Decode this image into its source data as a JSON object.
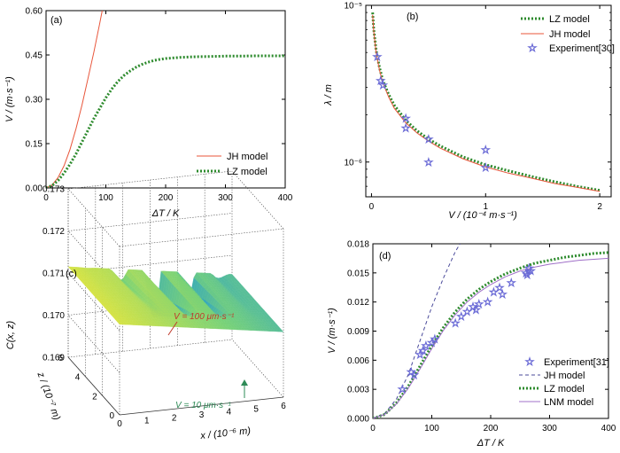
{
  "colors": {
    "jh": "#e8553a",
    "lz": "#2e8b2e",
    "star": "#6b6bd6",
    "lnm": "#a070c8",
    "jh_dash": "#4a4a9a",
    "axis": "#000000",
    "v100": "#c0392b",
    "v10": "#2e8b57"
  },
  "chart_data": [
    {
      "panel": "(a)",
      "type": "line",
      "xlabel": "ΔT / K",
      "ylabel": "V / (m·s⁻¹)",
      "xlim": [
        0,
        400
      ],
      "ylim": [
        0,
        0.6
      ],
      "xticks": [
        0,
        100,
        200,
        300,
        400
      ],
      "yticks": [
        0.0,
        0.15,
        0.3,
        0.45,
        0.6
      ],
      "ytick_labels": [
        "0.00",
        "0.15",
        "0.30",
        "0.45",
        "0.60"
      ],
      "legend_position": "bottom-right",
      "series": [
        {
          "name": "JH model",
          "style": "solid",
          "x": [
            0,
            10,
            20,
            30,
            40,
            50,
            60,
            70,
            80,
            90,
            94
          ],
          "y": [
            0,
            0.01,
            0.035,
            0.075,
            0.13,
            0.2,
            0.28,
            0.37,
            0.46,
            0.56,
            0.6
          ]
        },
        {
          "name": "LZ model",
          "style": "dotted",
          "x": [
            0,
            10,
            20,
            30,
            40,
            50,
            60,
            70,
            80,
            90,
            100,
            110,
            120,
            130,
            140,
            150,
            160,
            170,
            180,
            190,
            200,
            225,
            250,
            275,
            300,
            325,
            350,
            375,
            400
          ],
          "y": [
            0,
            0.008,
            0.025,
            0.05,
            0.08,
            0.115,
            0.155,
            0.195,
            0.235,
            0.27,
            0.305,
            0.335,
            0.36,
            0.38,
            0.395,
            0.408,
            0.418,
            0.425,
            0.431,
            0.435,
            0.438,
            0.442,
            0.444,
            0.445,
            0.446,
            0.446,
            0.447,
            0.447,
            0.447
          ]
        }
      ]
    },
    {
      "panel": "(b)",
      "type": "line",
      "xlabel": "V / (10⁻⁴ m·s⁻¹)",
      "ylabel": "λ / m",
      "xlim": [
        -0.05,
        2.1
      ],
      "ylim": [
        6e-07,
        1e-05
      ],
      "yscale": "log",
      "xticks": [
        0,
        1,
        2
      ],
      "ytick_labels": [
        "10⁻⁶",
        "10⁻⁵"
      ],
      "yticks": [
        1e-06,
        1e-05
      ],
      "legend_position": "top-right",
      "series": [
        {
          "name": "LZ model",
          "style": "dotted",
          "x": [
            0.01,
            0.02,
            0.04,
            0.07,
            0.1,
            0.15,
            0.2,
            0.3,
            0.4,
            0.5,
            0.6,
            0.8,
            1.0,
            1.2,
            1.4,
            1.6,
            1.8,
            2.0
          ],
          "y": [
            9e-06,
            7e-06,
            5.2e-06,
            4e-06,
            3.3e-06,
            2.7e-06,
            2.3e-06,
            1.85e-06,
            1.58e-06,
            1.4e-06,
            1.27e-06,
            1.08e-06,
            9.6e-07,
            8.8e-07,
            8.1e-07,
            7.5e-07,
            7e-07,
            6.6e-07
          ]
        },
        {
          "name": "JH model",
          "style": "solid",
          "x": [
            0.01,
            0.02,
            0.04,
            0.07,
            0.1,
            0.15,
            0.2,
            0.3,
            0.4,
            0.5,
            0.6,
            0.8,
            1.0,
            1.2,
            1.4,
            1.6,
            1.8,
            2.0
          ],
          "y": [
            8.7e-06,
            6.8e-06,
            5e-06,
            3.85e-06,
            3.2e-06,
            2.6e-06,
            2.2e-06,
            1.78e-06,
            1.53e-06,
            1.36e-06,
            1.23e-06,
            1.05e-06,
            9.3e-07,
            8.5e-07,
            7.9e-07,
            7.3e-07,
            6.9e-07,
            6.5e-07
          ]
        },
        {
          "name": "Experiment[30]",
          "style": "star",
          "x": [
            0.05,
            0.08,
            0.1,
            0.3,
            0.3,
            0.5,
            0.5,
            1.0,
            1.0
          ],
          "y": [
            4.7e-06,
            3.3e-06,
            3.1e-06,
            1.9e-06,
            1.65e-06,
            1.4e-06,
            1e-06,
            1.2e-06,
            9.2e-07
          ]
        }
      ]
    },
    {
      "panel": "(c)",
      "type": "surface",
      "xlabel": "x / (10⁻⁶ m)",
      "ylabel": "z / (10⁻⁷ m)",
      "zlabel": "C(x, z)",
      "xlim": [
        0,
        6
      ],
      "ylim": [
        0,
        6
      ],
      "zlim": [
        0.169,
        0.173
      ],
      "xticks": [
        0,
        1,
        2,
        3,
        4,
        5,
        6
      ],
      "yticks": [
        0,
        2,
        4,
        6
      ],
      "zticks": [
        0.169,
        0.17,
        0.171,
        0.172,
        0.173
      ],
      "ztick_labels": [
        "0.169",
        "0.170",
        "0.171",
        "0.172",
        "0.173"
      ],
      "annotations": [
        "V = 100 μm·s⁻¹",
        "V = 10 μm·s⁻¹"
      ]
    },
    {
      "panel": "(d)",
      "type": "line",
      "xlabel": "ΔT / K",
      "ylabel": "V / (m·s⁻¹)",
      "xlim": [
        0,
        400
      ],
      "ylim": [
        0,
        0.018
      ],
      "xticks": [
        0,
        100,
        200,
        300,
        400
      ],
      "yticks": [
        0,
        0.003,
        0.006,
        0.009,
        0.012,
        0.015,
        0.018
      ],
      "ytick_labels": [
        "0.000",
        "0.003",
        "0.006",
        "0.009",
        "0.012",
        "0.015",
        "0.018"
      ],
      "legend_position": "bottom-right",
      "series": [
        {
          "name": "Experiment[31]",
          "style": "star",
          "x": [
            50,
            65,
            70,
            80,
            85,
            90,
            100,
            105,
            140,
            150,
            160,
            170,
            175,
            180,
            195,
            205,
            215,
            220,
            235,
            260,
            262,
            265,
            268
          ],
          "y": [
            0.003,
            0.0048,
            0.0045,
            0.0066,
            0.007,
            0.0075,
            0.0078,
            0.0082,
            0.0098,
            0.0105,
            0.011,
            0.0115,
            0.0112,
            0.0118,
            0.012,
            0.013,
            0.0135,
            0.0128,
            0.014,
            0.015,
            0.0148,
            0.0155,
            0.0152
          ]
        },
        {
          "name": "JH model",
          "style": "dashed",
          "x": [
            0,
            20,
            40,
            60,
            80,
            100,
            120,
            140,
            150
          ],
          "y": [
            0,
            0.0005,
            0.002,
            0.0045,
            0.008,
            0.0115,
            0.0145,
            0.0172,
            0.0182
          ]
        },
        {
          "name": "LZ model",
          "style": "dotted",
          "x": [
            0,
            20,
            40,
            60,
            80,
            100,
            120,
            140,
            160,
            180,
            200,
            225,
            250,
            275,
            300,
            325,
            350,
            375,
            400
          ],
          "y": [
            0,
            0.0004,
            0.0016,
            0.0033,
            0.0054,
            0.0075,
            0.0094,
            0.011,
            0.0123,
            0.0133,
            0.0141,
            0.0149,
            0.0155,
            0.016,
            0.0163,
            0.0166,
            0.0168,
            0.017,
            0.0171
          ]
        },
        {
          "name": "LNM model",
          "style": "solid",
          "x": [
            0,
            20,
            40,
            60,
            80,
            100,
            120,
            140,
            160,
            180,
            200,
            225,
            250,
            275,
            300,
            325,
            350,
            375,
            400
          ],
          "y": [
            0,
            0.0004,
            0.0015,
            0.0031,
            0.0051,
            0.0072,
            0.0091,
            0.0107,
            0.012,
            0.013,
            0.0138,
            0.0146,
            0.0152,
            0.0156,
            0.0159,
            0.0161,
            0.0163,
            0.0164,
            0.0165
          ]
        }
      ]
    }
  ]
}
